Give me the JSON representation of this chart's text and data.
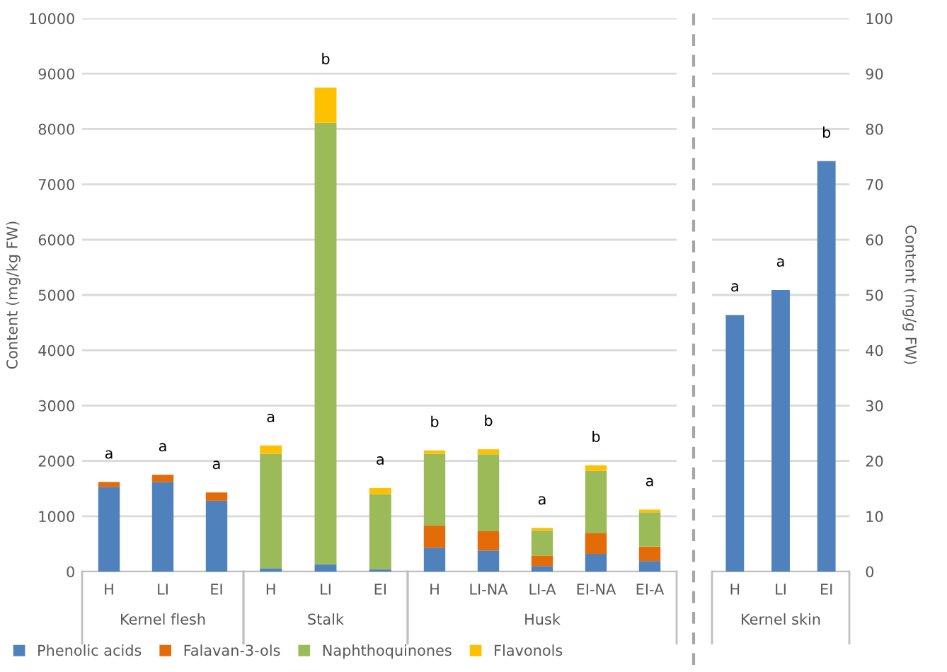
{
  "chart_data": [
    {
      "type": "bar",
      "stacked": true,
      "xlabel": "Kernel flesh",
      "ylabel": "Content (mg/kg FW)",
      "categories": [
        "H",
        "LI",
        "EI"
      ],
      "ylim": [
        0,
        10000
      ],
      "yticks": [
        0,
        1000,
        2000,
        3000,
        4000,
        5000,
        6000,
        7000,
        8000,
        9000,
        10000
      ],
      "grid": "y",
      "legend": "bottom",
      "series": [
        {
          "name": "Phenolic acids",
          "color": "#4f81bd",
          "values": [
            1530,
            1620,
            1280
          ]
        },
        {
          "name": "Falavan-3-ols",
          "color": "#e36c09",
          "values": [
            90,
            130,
            150
          ]
        },
        {
          "name": "Naphthoquinones",
          "color": "#9bbb59",
          "values": [
            0,
            0,
            0
          ]
        },
        {
          "name": "Flavonols",
          "color": "#ffc000",
          "values": [
            0,
            0,
            0
          ]
        }
      ],
      "annotations": [
        "a",
        "a",
        "a"
      ]
    },
    {
      "type": "bar",
      "stacked": true,
      "xlabel": "Stalk",
      "categories": [
        "H",
        "LI",
        "EI"
      ],
      "ylim": [
        0,
        10000
      ],
      "yticks": [
        0,
        1000,
        2000,
        3000,
        4000,
        5000,
        6000,
        7000,
        8000,
        9000,
        10000
      ],
      "grid": "y",
      "tick_labels": "x",
      "series": [
        {
          "color": "#4f81bd",
          "values": [
            60,
            130,
            40
          ]
        },
        {
          "color": "#e36c09",
          "values": [
            0,
            0,
            0
          ]
        },
        {
          "color": "#9bbb59",
          "values": [
            2070,
            7980,
            1360
          ]
        },
        {
          "color": "#ffc000",
          "values": [
            150,
            640,
            110
          ]
        }
      ],
      "annotations": [
        "a",
        "b",
        "a"
      ]
    },
    {
      "type": "bar",
      "stacked": true,
      "xlabel": "Husk",
      "categories": [
        "H",
        "LI-NA",
        "LI-A",
        "EI-NA",
        "EI-A"
      ],
      "ylim": [
        0,
        10000
      ],
      "yticks": [
        0,
        1000,
        2000,
        3000,
        4000,
        5000,
        6000,
        7000,
        8000,
        9000,
        10000
      ],
      "grid": "y",
      "tick_labels": "x",
      "series": [
        {
          "color": "#4f81bd",
          "values": [
            430,
            380,
            100,
            320,
            190
          ]
        },
        {
          "color": "#e36c09",
          "values": [
            400,
            350,
            190,
            380,
            260
          ]
        },
        {
          "color": "#9bbb59",
          "values": [
            1300,
            1390,
            450,
            1120,
            620
          ]
        },
        {
          "color": "#ffc000",
          "values": [
            60,
            90,
            50,
            100,
            50
          ]
        }
      ],
      "annotations": [
        "b",
        "b",
        "a",
        "b",
        "a"
      ]
    },
    {
      "type": "bar",
      "xlabel": "Kernel skin",
      "ylabel": "Content (mg/g FW)",
      "categories": [
        "H",
        "LI",
        "EI"
      ],
      "ylim": [
        0,
        100
      ],
      "yticks": [
        0,
        10,
        20,
        30,
        40,
        50,
        60,
        70,
        80,
        90,
        100
      ],
      "grid": "y",
      "series": [
        {
          "color": "#4f81bd",
          "values": [
            46.4,
            50.9,
            74.2
          ]
        }
      ],
      "annotations": [
        "a",
        "a",
        "b"
      ]
    }
  ]
}
